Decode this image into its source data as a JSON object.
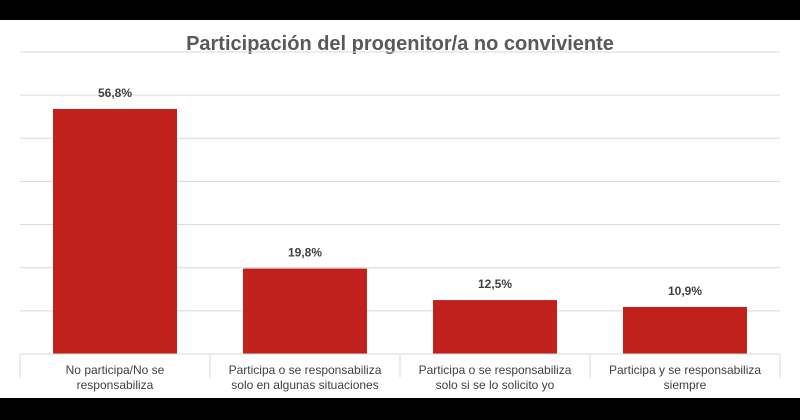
{
  "colors": {
    "bar": "#c0211a",
    "grid": "#d9d9d9",
    "text": "#404040",
    "title": "#595959"
  },
  "chart_data": {
    "type": "bar",
    "title": "Participación del progenitor/a no conviviente",
    "categories": [
      [
        "No participa/No se",
        "responsabiliza"
      ],
      [
        "Participa o se responsabiliza",
        "solo en algunas situaciones"
      ],
      [
        "Participa o se responsabiliza",
        "solo si se lo solicito yo"
      ],
      [
        "Participa y se responsabiliza",
        "siempre"
      ]
    ],
    "values": [
      56.8,
      19.8,
      12.5,
      10.9
    ],
    "data_labels": [
      "56,8%",
      "19,8%",
      "12,5%",
      "10,9%"
    ],
    "ylim": [
      0,
      70
    ],
    "grid": true,
    "legend": "none",
    "xlabel": "",
    "ylabel": ""
  }
}
